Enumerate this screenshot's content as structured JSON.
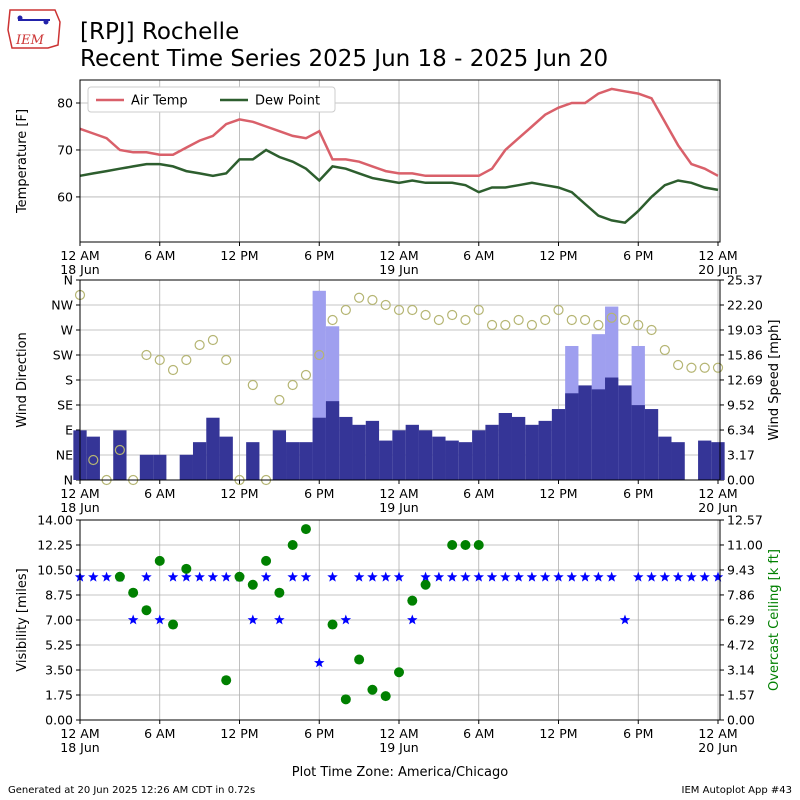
{
  "header": {
    "title": "[RPJ] Rochelle",
    "subtitle": "Recent Time Series 2025 Jun 18 - 2025 Jun 20"
  },
  "footer": {
    "left": "Generated at 20 Jun 2025 12:26 AM CDT in 0.72s",
    "right": "IEM Autoplot App #43"
  },
  "chart_data": [
    {
      "type": "line",
      "ylabel": "Temperature [F]",
      "legend": "upper left",
      "grid": true,
      "x": [
        0,
        1,
        2,
        3,
        4,
        5,
        6,
        7,
        8,
        9,
        10,
        11,
        12,
        13,
        14,
        15,
        16,
        17,
        18,
        19,
        20,
        21,
        22,
        23,
        24,
        25,
        26,
        27,
        28,
        29,
        30,
        31,
        32,
        33,
        34,
        35,
        36,
        37,
        38,
        39,
        40,
        41,
        42,
        43,
        44,
        45,
        46,
        47,
        48
      ],
      "xlim": [
        0,
        48.15
      ],
      "xticks": [
        {
          "value": 0,
          "label": "12 AM\n18 Jun"
        },
        {
          "value": 6,
          "label": "6 AM"
        },
        {
          "value": 12,
          "label": "12 PM"
        },
        {
          "value": 18,
          "label": "6 PM"
        },
        {
          "value": 24,
          "label": "12 AM\n19 Jun"
        },
        {
          "value": 30,
          "label": "6 AM"
        },
        {
          "value": 36,
          "label": "12 PM"
        },
        {
          "value": 42,
          "label": "6 PM"
        },
        {
          "value": 48,
          "label": "12 AM\n20 Jun"
        }
      ],
      "ylim": [
        50.4,
        84.9
      ],
      "yticks": [
        60,
        70,
        80
      ],
      "series": [
        {
          "name": "Air Temp",
          "type": "line",
          "color": "#d9606a",
          "values": [
            74.5,
            73.5,
            72.5,
            70,
            69.5,
            69.5,
            69,
            69,
            70.5,
            72,
            73,
            75.5,
            76.5,
            76,
            75,
            74,
            73,
            72.5,
            74,
            68,
            68,
            67.5,
            66.5,
            65.5,
            65,
            65,
            64.5,
            64.5,
            64.5,
            64.5,
            64.5,
            66,
            70,
            72.5,
            75,
            77.5,
            79,
            80,
            80,
            82,
            83,
            82.5,
            82,
            81,
            76,
            71,
            67,
            66,
            64.5
          ]
        },
        {
          "name": "Dew Point",
          "type": "line",
          "color": "#2d5e2e",
          "values": [
            64.5,
            65,
            65.5,
            66,
            66.5,
            67,
            67,
            66.5,
            65.5,
            65,
            64.5,
            65,
            68,
            68,
            70,
            68.5,
            67.5,
            66,
            63.5,
            66.5,
            66,
            65,
            64,
            63.5,
            63,
            63.5,
            63,
            63,
            63,
            62.5,
            61,
            62,
            62,
            62.5,
            63,
            62.5,
            62,
            61,
            58.5,
            56,
            55,
            54.5,
            57,
            60,
            62.5,
            63.5,
            63,
            62,
            61.5
          ]
        }
      ]
    },
    {
      "type": "combo",
      "ylabel": "Wind Direction",
      "y2label": "Wind Speed [mph]",
      "grid": true,
      "x": [
        0,
        1,
        2,
        3,
        4,
        5,
        6,
        7,
        8,
        9,
        10,
        11,
        12,
        13,
        14,
        15,
        16,
        17,
        18,
        19,
        20,
        21,
        22,
        23,
        24,
        25,
        26,
        27,
        28,
        29,
        30,
        31,
        32,
        33,
        34,
        35,
        36,
        37,
        38,
        39,
        40,
        41,
        42,
        43,
        44,
        45,
        46,
        47,
        48
      ],
      "xlim": [
        0,
        48.15
      ],
      "xticks": [
        {
          "value": 0,
          "label": "12 AM\n18 Jun"
        },
        {
          "value": 6,
          "label": "6 AM"
        },
        {
          "value": 12,
          "label": "12 PM"
        },
        {
          "value": 18,
          "label": "6 PM"
        },
        {
          "value": 24,
          "label": "12 AM\n19 Jun"
        },
        {
          "value": 30,
          "label": "6 AM"
        },
        {
          "value": 36,
          "label": "12 PM"
        },
        {
          "value": 42,
          "label": "6 PM"
        },
        {
          "value": 48,
          "label": "12 AM\n20 Jun"
        }
      ],
      "ylim": [
        0,
        360
      ],
      "yticks": [
        {
          "value": 0,
          "label": "N"
        },
        {
          "value": 45,
          "label": "NE"
        },
        {
          "value": 90,
          "label": "E"
        },
        {
          "value": 135,
          "label": "SE"
        },
        {
          "value": 180,
          "label": "S"
        },
        {
          "value": 225,
          "label": "SW"
        },
        {
          "value": 270,
          "label": "W"
        },
        {
          "value": 315,
          "label": "NW"
        },
        {
          "value": 360,
          "label": "N"
        }
      ],
      "y2lim": [
        0,
        25.37
      ],
      "y2ticks": [
        {
          "value": 0,
          "label": "0.00"
        },
        3.17,
        6.34,
        9.52,
        12.69,
        15.86,
        19.03,
        {
          "value": 22.2,
          "label": "22.20"
        },
        25.37
      ],
      "series": [
        {
          "type": "bar",
          "axis": "y2",
          "color": "#9f9fef",
          "values": [
            null,
            null,
            null,
            null,
            null,
            null,
            null,
            null,
            null,
            null,
            null,
            null,
            null,
            null,
            null,
            null,
            null,
            null,
            24,
            19.5,
            null,
            null,
            null,
            null,
            null,
            null,
            null,
            null,
            null,
            null,
            null,
            null,
            null,
            null,
            null,
            null,
            null,
            17,
            null,
            18.5,
            22,
            null,
            17,
            null,
            null,
            null,
            null,
            null,
            null
          ]
        },
        {
          "type": "bar",
          "axis": "y2",
          "color": "#353597",
          "values": [
            6.3,
            5.5,
            0,
            6.3,
            0,
            3.2,
            3.2,
            0,
            3.2,
            4.8,
            7.9,
            5.5,
            0,
            4.8,
            0,
            6.3,
            4.8,
            4.8,
            7.9,
            10,
            8,
            7,
            7.5,
            5,
            6.3,
            7,
            6.3,
            5.5,
            5,
            4.8,
            6.3,
            7,
            8.5,
            8,
            7,
            7.5,
            9,
            11,
            12,
            11.5,
            13,
            12,
            9.5,
            9,
            5.5,
            4.8,
            0,
            5,
            4.8
          ]
        },
        {
          "type": "circle",
          "axis": "y",
          "color": "#b5b573",
          "values": [
            333,
            36,
            0,
            54,
            0,
            225,
            216,
            198,
            216,
            243,
            252,
            216,
            0,
            171,
            0,
            144,
            171,
            189,
            225,
            288,
            306,
            328,
            324,
            315,
            306,
            306,
            297,
            288,
            297,
            288,
            306,
            279,
            279,
            288,
            279,
            288,
            306,
            288,
            288,
            279,
            292,
            288,
            279,
            270,
            234,
            207,
            202,
            202,
            202
          ]
        }
      ]
    },
    {
      "type": "combo",
      "ylabel": "Visibility [miles]",
      "y2label": "Overcast Ceiling [k ft]",
      "y2color": "#008000",
      "xlabel": "Plot Time Zone: America/Chicago",
      "grid": true,
      "x": [
        0,
        1,
        2,
        3,
        4,
        5,
        6,
        7,
        8,
        9,
        10,
        11,
        12,
        13,
        14,
        15,
        16,
        17,
        18,
        19,
        20,
        21,
        22,
        23,
        24,
        25,
        26,
        27,
        28,
        29,
        30,
        31,
        32,
        33,
        34,
        35,
        36,
        37,
        38,
        39,
        40,
        41,
        42,
        43,
        44,
        45,
        46,
        47,
        48
      ],
      "xlim": [
        0,
        48.15
      ],
      "xticks": [
        {
          "value": 0,
          "label": "12 AM\n18 Jun"
        },
        {
          "value": 6,
          "label": "6 AM"
        },
        {
          "value": 12,
          "label": "12 PM"
        },
        {
          "value": 18,
          "label": "6 PM"
        },
        {
          "value": 24,
          "label": "12 AM\n19 Jun"
        },
        {
          "value": 30,
          "label": "6 AM"
        },
        {
          "value": 36,
          "label": "12 PM"
        },
        {
          "value": 42,
          "label": "6 PM"
        },
        {
          "value": 48,
          "label": "12 AM\n20 Jun"
        }
      ],
      "ylim": [
        0,
        14
      ],
      "yticks": [
        {
          "value": 0,
          "label": "0.00"
        },
        1.75,
        {
          "value": 3.5,
          "label": "3.50"
        },
        5.25,
        {
          "value": 7,
          "label": "7.00"
        },
        8.75,
        {
          "value": 10.5,
          "label": "10.50"
        },
        12.25,
        {
          "value": 14,
          "label": "14.00"
        }
      ],
      "y2lim": [
        0,
        12.57
      ],
      "y2ticks": [
        {
          "value": 0,
          "label": "0.00"
        },
        1.57,
        3.14,
        4.72,
        6.29,
        7.86,
        9.43,
        {
          "value": 11,
          "label": "11.00"
        },
        12.57
      ],
      "series": [
        {
          "type": "star",
          "axis": "y",
          "color": "#0000ff",
          "values": [
            10,
            10,
            10,
            10,
            7,
            10,
            7,
            10,
            10,
            10,
            10,
            10,
            10,
            7,
            10,
            7,
            10,
            10,
            4,
            10,
            7,
            10,
            10,
            10,
            10,
            7,
            10,
            10,
            10,
            10,
            10,
            10,
            10,
            10,
            10,
            10,
            10,
            10,
            10,
            10,
            10,
            7,
            10,
            10,
            10,
            10,
            10,
            10,
            10
          ]
        },
        {
          "type": "dot",
          "axis": "y2",
          "color": "#008000",
          "values": [
            null,
            null,
            null,
            9,
            8,
            6.9,
            10,
            6,
            9.5,
            null,
            null,
            2.5,
            9,
            8.5,
            10,
            8,
            11,
            12,
            null,
            6,
            1.3,
            3.8,
            1.9,
            1.5,
            3,
            7.5,
            8.5,
            null,
            11,
            11,
            11,
            null,
            null,
            null,
            null,
            null,
            null,
            null,
            null,
            null,
            null,
            null,
            null,
            null,
            null,
            null,
            null,
            null,
            null
          ]
        }
      ]
    }
  ]
}
